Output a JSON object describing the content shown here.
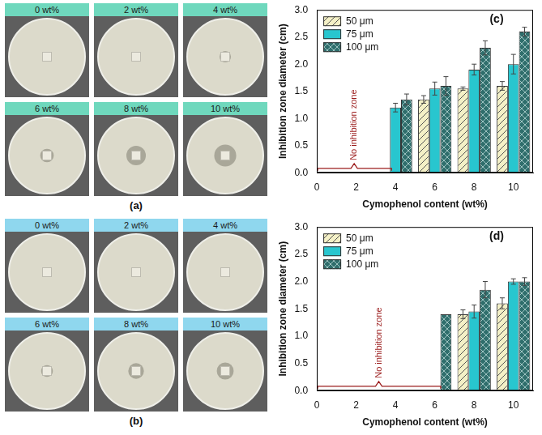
{
  "photos": [
    {
      "label": "(a)",
      "color": "#6fd8bd",
      "images": [
        "0 wt%",
        "2 wt%",
        "4 wt%",
        "6 wt%",
        "8 wt%",
        "10 wt%"
      ]
    },
    {
      "label": "(b)",
      "color": "#8fd7ee",
      "images": [
        "0 wt%",
        "2 wt%",
        "4 wt%",
        "6 wt%",
        "8 wt%",
        "10 wt%"
      ]
    }
  ],
  "chart_data": [
    {
      "type": "bar",
      "title": "(c)",
      "x_label": "Cymophenol content (wt%)",
      "y_label": "Inhibition zone diameter (cm)",
      "x": [
        0,
        2,
        4,
        6,
        8,
        10
      ],
      "xlim": [
        0,
        11
      ],
      "xticks": [
        0,
        2,
        4,
        6,
        8,
        10
      ],
      "ylim": [
        0,
        3
      ],
      "yticks": [
        {
          "value": 0,
          "label": "0.0"
        },
        0.5,
        {
          "value": 1,
          "label": "1.0"
        },
        1.5,
        {
          "value": 2,
          "label": "2.0"
        },
        2.5,
        {
          "value": 3,
          "label": "3.0"
        }
      ],
      "grid": false,
      "legend": "upper left",
      "series": [
        {
          "name": "50 μm",
          "color": "#f4f0c6",
          "values": [
            null,
            null,
            null,
            1.35,
            1.55,
            1.6
          ],
          "errors": [
            null,
            null,
            null,
            0.07,
            0.03,
            0.08
          ]
        },
        {
          "name": "75 μm",
          "color": "#28c6cf",
          "values": [
            null,
            null,
            1.2,
            1.55,
            1.9,
            2.0
          ],
          "errors": [
            null,
            null,
            0.08,
            0.12,
            0.1,
            0.18
          ]
        },
        {
          "name": "100 μm",
          "color": "#2f6e6c",
          "values": [
            null,
            null,
            1.35,
            1.6,
            2.3,
            2.6
          ],
          "errors": [
            null,
            null,
            0.1,
            0.17,
            0.13,
            0.08
          ]
        }
      ],
      "annotations": [
        {
          "text": "No inhibition zone",
          "x": [
            0,
            3.8
          ],
          "y": 0.08
        }
      ]
    },
    {
      "type": "bar",
      "title": "(d)",
      "x_label": "Cymophenol content (wt%)",
      "y_label": "Inhibition zone diameter (cm)",
      "x": [
        0,
        2,
        4,
        6,
        8,
        10
      ],
      "xlim": [
        0,
        11
      ],
      "xticks": [
        0,
        2,
        4,
        6,
        8,
        10
      ],
      "ylim": [
        0,
        3
      ],
      "yticks": [
        {
          "value": 0,
          "label": "0.0"
        },
        0.5,
        {
          "value": 1,
          "label": "1.0"
        },
        1.5,
        {
          "value": 2,
          "label": "2.0"
        },
        2.5,
        {
          "value": 3,
          "label": "3.0"
        }
      ],
      "grid": false,
      "legend": "upper left",
      "series": [
        {
          "name": "50 μm",
          "color": "#f4f0c6",
          "values": [
            null,
            null,
            null,
            null,
            1.4,
            1.6
          ],
          "errors": [
            null,
            null,
            null,
            null,
            0.08,
            0.1
          ]
        },
        {
          "name": "75 μm",
          "color": "#28c6cf",
          "values": [
            null,
            null,
            null,
            null,
            1.45,
            2.0
          ],
          "errors": [
            null,
            null,
            null,
            null,
            0.12,
            0.05
          ]
        },
        {
          "name": "100 μm",
          "color": "#2f6e6c",
          "values": [
            null,
            null,
            null,
            1.4,
            1.85,
            2.0
          ],
          "errors": [
            null,
            null,
            null,
            null,
            0.15,
            0.07
          ]
        }
      ],
      "annotations": [
        {
          "text": "No inhibition zone",
          "x": [
            0,
            6.3
          ],
          "y": 0.08
        }
      ]
    }
  ]
}
